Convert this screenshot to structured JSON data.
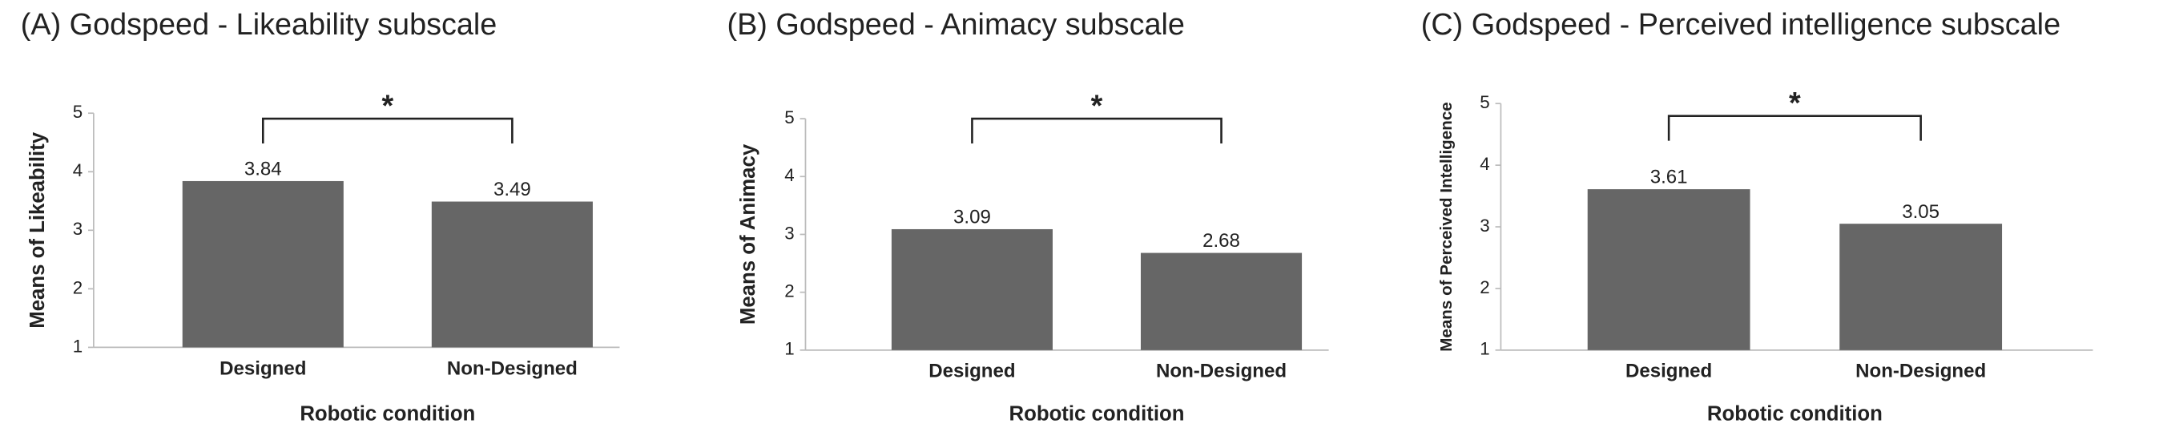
{
  "chart_data": [
    {
      "type": "bar",
      "title": "(A) Godspeed - Likeability subscale",
      "y_label": "Means of Likeability",
      "x_label": "Robotic condition",
      "categories": [
        "Designed",
        "Non-Designed"
      ],
      "values": [
        3.84,
        3.49
      ],
      "color": "#666666",
      "ylim": [
        1,
        5
      ],
      "yticks": [
        1,
        2,
        3,
        4,
        5
      ],
      "annotation": "*"
    },
    {
      "type": "bar",
      "title": "(B) Godspeed - Animacy  subscale",
      "y_label": "Means of Animacy",
      "x_label": "Robotic condition",
      "categories": [
        "Designed",
        "Non-Designed"
      ],
      "values": [
        3.09,
        2.68
      ],
      "color": "#666666",
      "ylim": [
        1,
        5
      ],
      "yticks": [
        1,
        2,
        3,
        4,
        5
      ],
      "annotation": "*"
    },
    {
      "type": "bar",
      "title": "(C) Godspeed - Perceived intelligence subscale",
      "y_label": "Means of Perceived Intelligence",
      "x_label": "Robotic condition",
      "categories": [
        "Designed",
        "Non-Designed"
      ],
      "values": [
        3.61,
        3.05
      ],
      "color": "#666666",
      "ylim": [
        1,
        5
      ],
      "yticks": [
        1,
        2,
        3,
        4,
        5
      ],
      "annotation": "*"
    }
  ]
}
